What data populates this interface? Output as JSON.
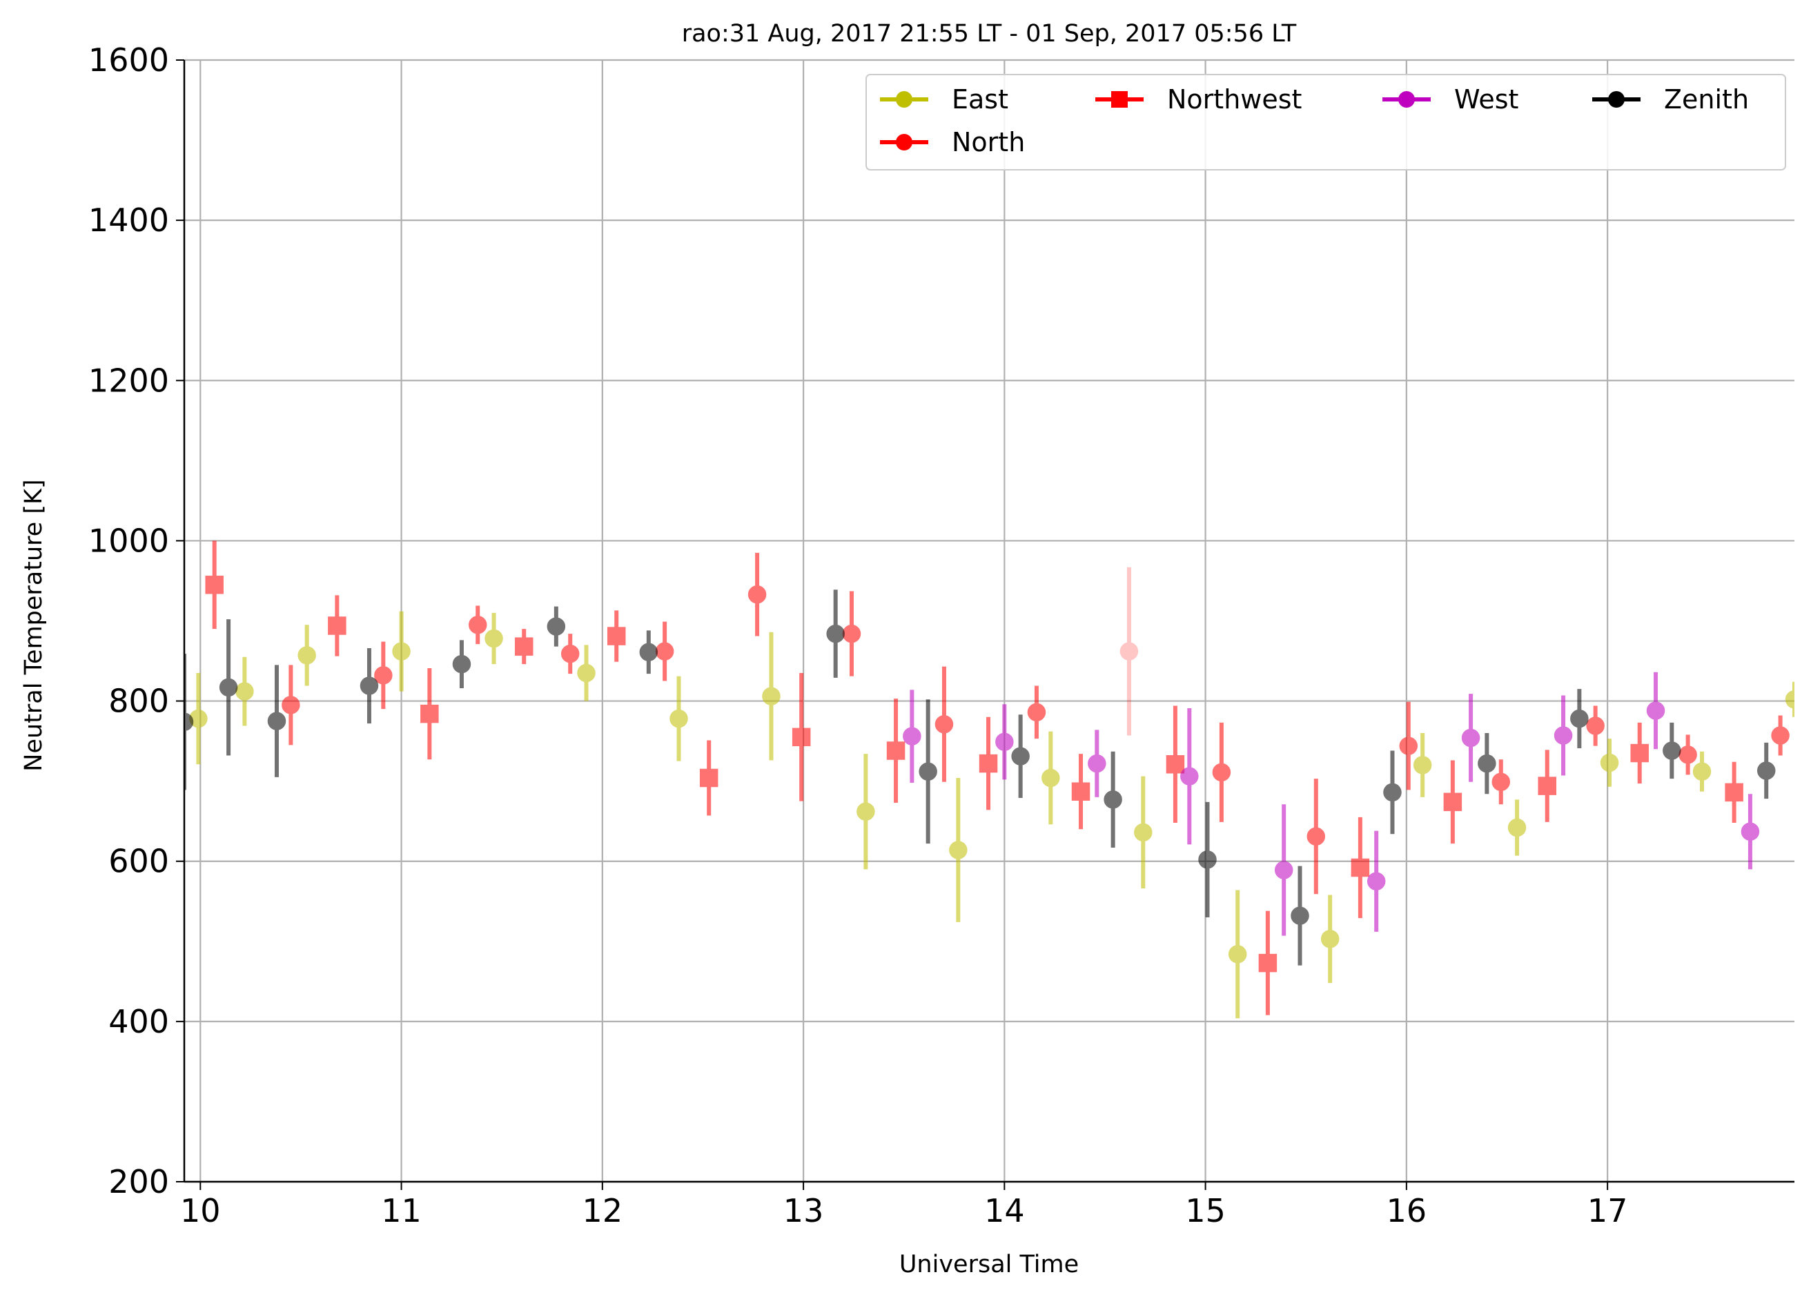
{
  "chart_data": {
    "type": "scatter",
    "title": "rao:31 Aug, 2017 21:55 LT - 01 Sep, 2017 05:56 LT",
    "xlabel": "Universal Time",
    "ylabel": "Neutral Temperature [K]",
    "xlim": [
      9.92,
      17.93
    ],
    "ylim": [
      200,
      1600
    ],
    "xticks": [
      "10",
      "11",
      "12",
      "13",
      "14",
      "15",
      "16",
      "17"
    ],
    "yticks": [
      "200",
      "400",
      "600",
      "800",
      "1000",
      "1200",
      "1400",
      "1600"
    ],
    "grid": true,
    "legend_position": "top-right",
    "series": [
      {
        "name": "East",
        "color": "#bfbf00",
        "marker": "circle",
        "points": [
          {
            "x": 9.99,
            "y": 778,
            "err": 57
          },
          {
            "x": 10.22,
            "y": 812,
            "err": 43
          },
          {
            "x": 10.53,
            "y": 857,
            "err": 38
          },
          {
            "x": 11.0,
            "y": 862,
            "err": 50
          },
          {
            "x": 11.46,
            "y": 878,
            "err": 32
          },
          {
            "x": 11.92,
            "y": 835,
            "err": 35
          },
          {
            "x": 12.38,
            "y": 778,
            "err": 53
          },
          {
            "x": 12.84,
            "y": 806,
            "err": 80
          },
          {
            "x": 13.31,
            "y": 662,
            "err": 72
          },
          {
            "x": 13.77,
            "y": 614,
            "err": 90
          },
          {
            "x": 14.23,
            "y": 704,
            "err": 58
          },
          {
            "x": 14.69,
            "y": 636,
            "err": 70
          },
          {
            "x": 15.16,
            "y": 484,
            "err": 80
          },
          {
            "x": 15.62,
            "y": 503,
            "err": 55
          },
          {
            "x": 16.08,
            "y": 720,
            "err": 40
          },
          {
            "x": 16.55,
            "y": 642,
            "err": 35
          },
          {
            "x": 17.01,
            "y": 723,
            "err": 30
          },
          {
            "x": 17.47,
            "y": 712,
            "err": 25
          },
          {
            "x": 17.93,
            "y": 802,
            "err": 22
          }
        ]
      },
      {
        "name": "North",
        "color": "#ff0000",
        "marker": "circle",
        "points": [
          {
            "x": 10.45,
            "y": 795,
            "err": 50
          },
          {
            "x": 10.91,
            "y": 832,
            "err": 42
          },
          {
            "x": 11.38,
            "y": 895,
            "err": 24
          },
          {
            "x": 11.84,
            "y": 859,
            "err": 25
          },
          {
            "x": 12.31,
            "y": 862,
            "err": 37
          },
          {
            "x": 12.77,
            "y": 933,
            "err": 52
          },
          {
            "x": 13.24,
            "y": 884,
            "err": 53
          },
          {
            "x": 13.7,
            "y": 771,
            "err": 72
          },
          {
            "x": 14.16,
            "y": 786,
            "err": 33
          },
          {
            "x": 14.62,
            "y": 862,
            "err": 105,
            "faded": true
          },
          {
            "x": 15.08,
            "y": 711,
            "err": 62
          },
          {
            "x": 15.55,
            "y": 631,
            "err": 72
          },
          {
            "x": 16.01,
            "y": 744,
            "err": 55
          },
          {
            "x": 16.47,
            "y": 699,
            "err": 28
          },
          {
            "x": 16.94,
            "y": 769,
            "err": 25
          },
          {
            "x": 17.4,
            "y": 733,
            "err": 25
          },
          {
            "x": 17.86,
            "y": 757,
            "err": 25
          }
        ]
      },
      {
        "name": "Northwest",
        "color": "#ff0000",
        "marker": "square",
        "points": [
          {
            "x": 10.07,
            "y": 945,
            "err": 55
          },
          {
            "x": 10.68,
            "y": 894,
            "err": 38
          },
          {
            "x": 11.14,
            "y": 784,
            "err": 57
          },
          {
            "x": 11.61,
            "y": 868,
            "err": 22
          },
          {
            "x": 12.07,
            "y": 881,
            "err": 32
          },
          {
            "x": 12.53,
            "y": 704,
            "err": 47
          },
          {
            "x": 12.99,
            "y": 755,
            "err": 80
          },
          {
            "x": 13.46,
            "y": 738,
            "err": 65
          },
          {
            "x": 13.92,
            "y": 722,
            "err": 58
          },
          {
            "x": 14.38,
            "y": 687,
            "err": 47
          },
          {
            "x": 14.85,
            "y": 721,
            "err": 73
          },
          {
            "x": 15.31,
            "y": 473,
            "err": 65
          },
          {
            "x": 15.77,
            "y": 592,
            "err": 63
          },
          {
            "x": 16.23,
            "y": 674,
            "err": 52
          },
          {
            "x": 16.7,
            "y": 694,
            "err": 45
          },
          {
            "x": 17.16,
            "y": 735,
            "err": 38
          },
          {
            "x": 17.63,
            "y": 686,
            "err": 38
          }
        ]
      },
      {
        "name": "West",
        "color": "#bf00bf",
        "marker": "circle",
        "points": [
          {
            "x": 13.54,
            "y": 756,
            "err": 58
          },
          {
            "x": 14.0,
            "y": 749,
            "err": 47
          },
          {
            "x": 14.46,
            "y": 722,
            "err": 42
          },
          {
            "x": 14.92,
            "y": 706,
            "err": 85
          },
          {
            "x": 15.39,
            "y": 589,
            "err": 82
          },
          {
            "x": 15.85,
            "y": 575,
            "err": 63
          },
          {
            "x": 16.32,
            "y": 754,
            "err": 55
          },
          {
            "x": 16.78,
            "y": 757,
            "err": 50
          },
          {
            "x": 17.24,
            "y": 788,
            "err": 48
          },
          {
            "x": 17.71,
            "y": 637,
            "err": 47
          }
        ]
      },
      {
        "name": "Zenith",
        "color": "#000000",
        "marker": "circle",
        "points": [
          {
            "x": 9.92,
            "y": 774,
            "err": 85
          },
          {
            "x": 10.14,
            "y": 817,
            "err": 85
          },
          {
            "x": 10.38,
            "y": 775,
            "err": 70
          },
          {
            "x": 10.84,
            "y": 819,
            "err": 47
          },
          {
            "x": 11.3,
            "y": 846,
            "err": 30
          },
          {
            "x": 11.77,
            "y": 893,
            "err": 25
          },
          {
            "x": 12.23,
            "y": 861,
            "err": 27
          },
          {
            "x": 13.16,
            "y": 884,
            "err": 55
          },
          {
            "x": 13.62,
            "y": 712,
            "err": 90
          },
          {
            "x": 14.08,
            "y": 731,
            "err": 52
          },
          {
            "x": 14.54,
            "y": 677,
            "err": 60
          },
          {
            "x": 15.01,
            "y": 602,
            "err": 72
          },
          {
            "x": 15.47,
            "y": 532,
            "err": 62
          },
          {
            "x": 15.93,
            "y": 686,
            "err": 52
          },
          {
            "x": 16.4,
            "y": 722,
            "err": 38
          },
          {
            "x": 16.86,
            "y": 778,
            "err": 37
          },
          {
            "x": 17.32,
            "y": 738,
            "err": 35
          },
          {
            "x": 17.79,
            "y": 713,
            "err": 35
          }
        ]
      }
    ]
  }
}
